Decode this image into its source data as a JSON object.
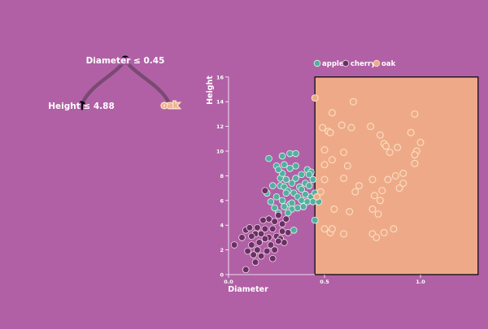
{
  "colors": {
    "background": "#b160a6",
    "apple": "#53b0a0",
    "cherry": "#6b3062",
    "oak": "#eeaa88",
    "oak_light": "#fbe0c4",
    "branch": "#7a4a72",
    "node": "#000000"
  },
  "tree": {
    "root": {
      "label": "Diameter ≤ 0.45"
    },
    "left": {
      "label": "Height ≤ 4.88"
    },
    "right": {
      "label": "oak"
    }
  },
  "chart_data": {
    "type": "scatter",
    "xlabel": "Diameter",
    "ylabel": "Height",
    "xlim": [
      0,
      1.3
    ],
    "ylim": [
      0,
      16
    ],
    "xticks": [
      0.0,
      0.5,
      1.0
    ],
    "xtick_labels": [
      "0.0",
      "0.5",
      "1.0"
    ],
    "yticks": [
      0,
      2,
      4,
      6,
      8,
      10,
      12,
      14,
      16
    ],
    "ytick_labels": [
      "0",
      "2",
      "4",
      "6",
      "8",
      "10",
      "12",
      "14",
      "16"
    ],
    "legend_position": "top",
    "grid": false,
    "highlight_region": {
      "label": "oak",
      "x_range": [
        0.45,
        1.3
      ],
      "y_range": [
        0,
        16
      ]
    },
    "series": [
      {
        "name": "apple",
        "points": [
          [
            0.21,
            9.4
          ],
          [
            0.27,
            7.8
          ],
          [
            0.29,
            8.9
          ],
          [
            0.28,
            9.6
          ],
          [
            0.32,
            9.8
          ],
          [
            0.35,
            9.8
          ],
          [
            0.35,
            8.8
          ],
          [
            0.38,
            8.1
          ],
          [
            0.41,
            8.5
          ],
          [
            0.43,
            8.3
          ],
          [
            0.28,
            8.2
          ],
          [
            0.32,
            8.6
          ],
          [
            0.3,
            7.7
          ],
          [
            0.25,
            8.8
          ],
          [
            0.26,
            8.5
          ],
          [
            0.33,
            7.4
          ],
          [
            0.35,
            7.8
          ],
          [
            0.37,
            7.1
          ],
          [
            0.4,
            7.4
          ],
          [
            0.42,
            7.2
          ],
          [
            0.44,
            7.7
          ],
          [
            0.27,
            7.2
          ],
          [
            0.29,
            7.1
          ],
          [
            0.31,
            6.8
          ],
          [
            0.34,
            6.6
          ],
          [
            0.36,
            6.3
          ],
          [
            0.38,
            6.9
          ],
          [
            0.4,
            6.5
          ],
          [
            0.43,
            6.3
          ],
          [
            0.25,
            6.3
          ],
          [
            0.28,
            6.0
          ],
          [
            0.3,
            6.6
          ],
          [
            0.32,
            5.7
          ],
          [
            0.29,
            5.5
          ],
          [
            0.33,
            5.3
          ],
          [
            0.36,
            5.4
          ],
          [
            0.22,
            5.9
          ],
          [
            0.24,
            5.4
          ],
          [
            0.2,
            6.6
          ],
          [
            0.23,
            7.2
          ],
          [
            0.26,
            5.0
          ],
          [
            0.31,
            5.0
          ],
          [
            0.38,
            6.0
          ],
          [
            0.41,
            5.9
          ],
          [
            0.44,
            5.9
          ],
          [
            0.47,
            5.9
          ],
          [
            0.45,
            6.6
          ],
          [
            0.45,
            4.4
          ],
          [
            0.34,
            3.6
          ],
          [
            0.33,
            5.8
          ],
          [
            0.39,
            5.5
          ],
          [
            0.42,
            8.1
          ]
        ]
      },
      {
        "name": "cherry",
        "points": [
          [
            0.03,
            2.4
          ],
          [
            0.07,
            3.0
          ],
          [
            0.09,
            3.6
          ],
          [
            0.11,
            3.8
          ],
          [
            0.12,
            2.4
          ],
          [
            0.14,
            3.3
          ],
          [
            0.16,
            2.6
          ],
          [
            0.19,
            3.7
          ],
          [
            0.21,
            3.0
          ],
          [
            0.23,
            3.7
          ],
          [
            0.25,
            3.1
          ],
          [
            0.27,
            2.9
          ],
          [
            0.29,
            2.6
          ],
          [
            0.31,
            3.4
          ],
          [
            0.19,
            6.8
          ],
          [
            0.1,
            1.9
          ],
          [
            0.13,
            1.6
          ],
          [
            0.15,
            2.0
          ],
          [
            0.17,
            1.5
          ],
          [
            0.2,
            1.9
          ],
          [
            0.22,
            2.4
          ],
          [
            0.24,
            2.0
          ],
          [
            0.26,
            2.7
          ],
          [
            0.28,
            4.1
          ],
          [
            0.24,
            4.3
          ],
          [
            0.21,
            4.5
          ],
          [
            0.18,
            4.4
          ],
          [
            0.3,
            4.5
          ],
          [
            0.26,
            4.8
          ],
          [
            0.09,
            0.4
          ],
          [
            0.12,
            3.1
          ],
          [
            0.15,
            3.8
          ],
          [
            0.17,
            3.3
          ],
          [
            0.23,
            1.3
          ],
          [
            0.28,
            3.5
          ],
          [
            0.14,
            1.0
          ],
          [
            0.19,
            2.9
          ]
        ]
      },
      {
        "name": "oak",
        "points": [
          [
            0.45,
            14.3
          ],
          [
            0.49,
            11.9
          ],
          [
            0.52,
            11.6
          ],
          [
            0.53,
            11.5
          ],
          [
            0.54,
            13.1
          ],
          [
            0.59,
            12.1
          ],
          [
            0.64,
            11.9
          ],
          [
            0.74,
            12.0
          ],
          [
            0.79,
            11.3
          ],
          [
            0.81,
            10.6
          ],
          [
            0.65,
            14.0
          ],
          [
            0.97,
            13.0
          ],
          [
            0.95,
            11.5
          ],
          [
            0.98,
            10.0
          ],
          [
            1.0,
            10.7
          ],
          [
            0.5,
            10.1
          ],
          [
            0.6,
            9.9
          ],
          [
            0.82,
            10.4
          ],
          [
            0.84,
            9.9
          ],
          [
            0.88,
            10.3
          ],
          [
            0.91,
            8.2
          ],
          [
            0.97,
            9.7
          ],
          [
            0.97,
            9.0
          ],
          [
            0.62,
            8.8
          ],
          [
            0.54,
            9.3
          ],
          [
            0.5,
            8.9
          ],
          [
            0.5,
            7.7
          ],
          [
            0.6,
            7.8
          ],
          [
            0.75,
            7.7
          ],
          [
            0.83,
            7.7
          ],
          [
            0.89,
            7.0
          ],
          [
            0.91,
            7.4
          ],
          [
            0.87,
            8.0
          ],
          [
            0.68,
            7.2
          ],
          [
            0.66,
            6.7
          ],
          [
            0.76,
            6.4
          ],
          [
            0.8,
            6.8
          ],
          [
            0.79,
            6.0
          ],
          [
            0.75,
            5.3
          ],
          [
            0.78,
            4.9
          ],
          [
            0.63,
            5.1
          ],
          [
            0.55,
            5.3
          ],
          [
            0.48,
            6.7
          ],
          [
            0.46,
            6.3
          ],
          [
            0.5,
            3.7
          ],
          [
            0.53,
            3.4
          ],
          [
            0.54,
            3.7
          ],
          [
            0.6,
            3.3
          ],
          [
            0.75,
            3.3
          ],
          [
            0.77,
            3.0
          ],
          [
            0.81,
            3.4
          ],
          [
            0.86,
            3.7
          ]
        ]
      }
    ]
  }
}
